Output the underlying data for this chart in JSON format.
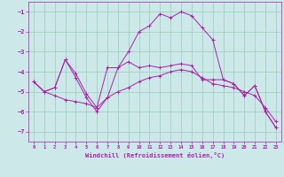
{
  "title": "",
  "xlabel": "Windchill (Refroidissement éolien,°C)",
  "ylabel": "",
  "background_color": "#cde8e8",
  "line_color": "#aa22aa",
  "grid_color": "#99ccbb",
  "xlim": [
    -0.5,
    23.5
  ],
  "ylim": [
    -7.5,
    -0.5
  ],
  "yticks": [
    -7,
    -6,
    -5,
    -4,
    -3,
    -2,
    -1
  ],
  "xticks": [
    0,
    1,
    2,
    3,
    4,
    5,
    6,
    7,
    8,
    9,
    10,
    11,
    12,
    13,
    14,
    15,
    16,
    17,
    18,
    19,
    20,
    21,
    22,
    23
  ],
  "series": [
    {
      "x": [
        0,
        1,
        2,
        3,
        4,
        5,
        6,
        7,
        8,
        9,
        10,
        11,
        12,
        13,
        14,
        15,
        16,
        17,
        18,
        19,
        20,
        21,
        22,
        23
      ],
      "y": [
        -4.5,
        -5.0,
        -4.8,
        -3.4,
        -4.3,
        -5.3,
        -6.0,
        -5.3,
        -3.8,
        -3.0,
        -2.0,
        -1.7,
        -1.1,
        -1.3,
        -1.0,
        -1.2,
        -1.8,
        -2.4,
        -4.4,
        -4.6,
        -5.2,
        -4.7,
        -6.0,
        -6.8
      ]
    },
    {
      "x": [
        0,
        1,
        2,
        3,
        4,
        5,
        6,
        7,
        8,
        9,
        10,
        11,
        12,
        13,
        14,
        15,
        16,
        17,
        18,
        19,
        20,
        21,
        22,
        23
      ],
      "y": [
        -4.5,
        -5.0,
        -4.8,
        -3.4,
        -4.1,
        -5.1,
        -5.8,
        -3.8,
        -3.8,
        -3.5,
        -3.8,
        -3.7,
        -3.8,
        -3.7,
        -3.6,
        -3.7,
        -4.4,
        -4.4,
        -4.4,
        -4.6,
        -5.2,
        -4.7,
        -6.0,
        -6.8
      ]
    },
    {
      "x": [
        0,
        1,
        2,
        3,
        4,
        5,
        6,
        7,
        8,
        9,
        10,
        11,
        12,
        13,
        14,
        15,
        16,
        17,
        18,
        19,
        20,
        21,
        22,
        23
      ],
      "y": [
        -4.5,
        -5.0,
        -5.2,
        -5.4,
        -5.5,
        -5.6,
        -5.8,
        -5.3,
        -5.0,
        -4.8,
        -4.5,
        -4.3,
        -4.2,
        -4.0,
        -3.9,
        -4.0,
        -4.3,
        -4.6,
        -4.7,
        -4.8,
        -5.0,
        -5.2,
        -5.8,
        -6.5
      ]
    }
  ]
}
